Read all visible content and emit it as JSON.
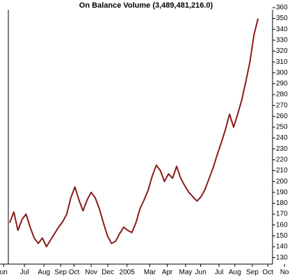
{
  "chart_data": {
    "type": "line",
    "title": "On Balance Volume (3,489,481,216.0)",
    "x": [
      0,
      1,
      2,
      3,
      4,
      5,
      6,
      7,
      8,
      9,
      10,
      11,
      12,
      13,
      14,
      15,
      16,
      17,
      18,
      19,
      20,
      21,
      22,
      23,
      24,
      25,
      26,
      27,
      28,
      29,
      30,
      31,
      32,
      33,
      34,
      35,
      36,
      37,
      38,
      39,
      40,
      41,
      42,
      43,
      44,
      45,
      46,
      47,
      48,
      49,
      50,
      51,
      52,
      53,
      54,
      55,
      56,
      57,
      58,
      59,
      60,
      61
    ],
    "series": [
      {
        "name": "On Balance Volume",
        "color": "#8b1a1a",
        "values": [
          162,
          172,
          155,
          165,
          170,
          158,
          148,
          143,
          148,
          140,
          146,
          152,
          158,
          163,
          170,
          185,
          195,
          183,
          173,
          183,
          190,
          185,
          175,
          162,
          150,
          143,
          145,
          152,
          158,
          155,
          153,
          162,
          175,
          183,
          192,
          205,
          215,
          210,
          200,
          207,
          203,
          214,
          203,
          196,
          190,
          186,
          182,
          186,
          193,
          203,
          213,
          225,
          236,
          248,
          262,
          250,
          262,
          275,
          292,
          310,
          335,
          350
        ]
      }
    ],
    "xlim": [
      -2.4,
      69
    ],
    "xticks": [
      {
        "value": -1.5,
        "label": "un"
      },
      {
        "value": 3.6,
        "label": "Jul"
      },
      {
        "value": 8.4,
        "label": "Aug"
      },
      {
        "value": 12.5,
        "label": "Sep"
      },
      {
        "value": 15.8,
        "label": "Oct"
      },
      {
        "value": 20.0,
        "label": "Nov"
      },
      {
        "value": 24.1,
        "label": "Dec"
      },
      {
        "value": 28.8,
        "label": "2005"
      },
      {
        "value": 34.4,
        "label": "Mar"
      },
      {
        "value": 38.7,
        "label": "Apr"
      },
      {
        "value": 43.2,
        "label": "May"
      },
      {
        "value": 46.9,
        "label": "Jun"
      },
      {
        "value": 51.4,
        "label": "Jul"
      },
      {
        "value": 55.3,
        "label": "Aug"
      },
      {
        "value": 59.6,
        "label": "Sep"
      },
      {
        "value": 63.4,
        "label": "Oct"
      },
      {
        "value": 67.5,
        "label": "No"
      }
    ],
    "ylim": [
      124,
      367
    ],
    "yticks": [
      130,
      140,
      150,
      160,
      170,
      180,
      190,
      200,
      210,
      220,
      230,
      240,
      250,
      260,
      270,
      280,
      290,
      300,
      310,
      320,
      330,
      340,
      350,
      360
    ]
  }
}
